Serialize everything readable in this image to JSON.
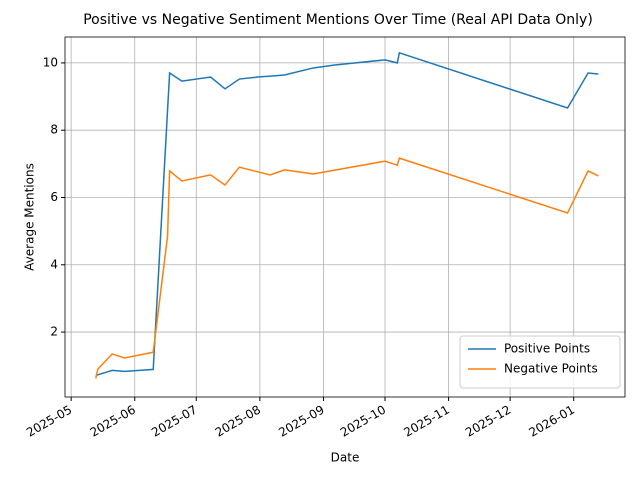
{
  "chart_data": {
    "type": "line",
    "title": "Positive vs Negative Sentiment Mentions Over Time (Real API Data Only)",
    "xlabel": "Date",
    "ylabel": "Average Mentions",
    "xlim": [
      20206,
      20479
    ],
    "ylim": [
      0.07,
      10.77
    ],
    "xticks": [
      {
        "value": 20209,
        "label": "2025-05"
      },
      {
        "value": 20240,
        "label": "2025-06"
      },
      {
        "value": 20270,
        "label": "2025-07"
      },
      {
        "value": 20301,
        "label": "2025-08"
      },
      {
        "value": 20332,
        "label": "2025-09"
      },
      {
        "value": 20362,
        "label": "2025-10"
      },
      {
        "value": 20393,
        "label": "2025-11"
      },
      {
        "value": 20423,
        "label": "2025-12"
      },
      {
        "value": 20454,
        "label": "2026-01"
      }
    ],
    "yticks": [
      2,
      4,
      6,
      8,
      10
    ],
    "grid": true,
    "legend": "lower right",
    "series": [
      {
        "name": "Positive Points",
        "color": "#1f77b4",
        "x": [
          20221,
          20229,
          20235,
          20249,
          20257,
          20263,
          20277,
          20284,
          20291,
          20300,
          20307,
          20313,
          20327,
          20338,
          20362,
          20368,
          20369,
          20451,
          20461,
          20466
        ],
        "values": [
          0.71,
          0.86,
          0.83,
          0.89,
          9.7,
          9.46,
          9.58,
          9.23,
          9.52,
          9.58,
          9.61,
          9.64,
          9.85,
          9.94,
          10.09,
          10.0,
          10.3,
          8.66,
          9.7,
          9.67
        ]
      },
      {
        "name": "Negative Points",
        "color": "#ff7f0e",
        "x": [
          20221,
          20222,
          20229,
          20235,
          20249,
          20256,
          20257,
          20263,
          20277,
          20284,
          20291,
          20306,
          20313,
          20327,
          20362,
          20368,
          20369,
          20451,
          20461,
          20466
        ],
        "values": [
          0.62,
          0.9,
          1.35,
          1.23,
          1.4,
          4.85,
          6.79,
          6.49,
          6.67,
          6.37,
          6.9,
          6.67,
          6.82,
          6.7,
          7.08,
          6.96,
          7.17,
          5.54,
          6.79,
          6.64
        ]
      }
    ]
  }
}
